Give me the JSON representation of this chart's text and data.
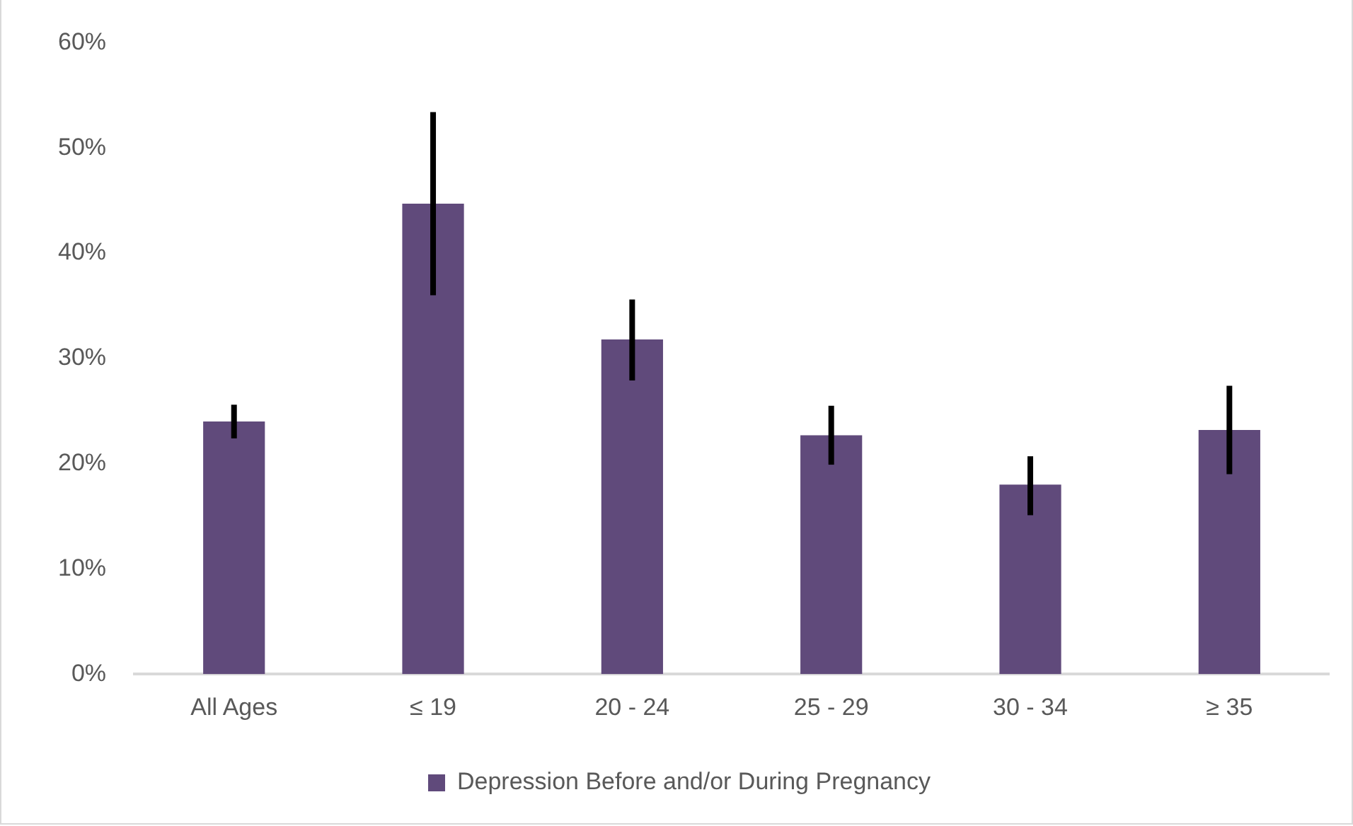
{
  "chart_data": {
    "type": "bar",
    "categories": [
      "All Ages",
      "≤ 19",
      "20 - 24",
      "25 - 29",
      "30 - 34",
      "≥ 35"
    ],
    "series": [
      {
        "name": "Depression Before and/or During Pregnancy",
        "color": "#604a7b",
        "values": [
          24.0,
          44.7,
          31.8,
          22.7,
          18.0,
          23.2
        ],
        "errors": [
          [
            22.4,
            25.6
          ],
          [
            36.0,
            53.4
          ],
          [
            27.9,
            35.6
          ],
          [
            19.9,
            25.5
          ],
          [
            15.1,
            20.7
          ],
          [
            19.0,
            27.4
          ]
        ]
      }
    ],
    "ylim": [
      0,
      60
    ],
    "yticks": [
      {
        "value": 0,
        "label": "0%"
      },
      {
        "value": 10,
        "label": "10%"
      },
      {
        "value": 20,
        "label": "20%"
      },
      {
        "value": 30,
        "label": "30%"
      },
      {
        "value": 40,
        "label": "40%"
      },
      {
        "value": 50,
        "label": "50%"
      },
      {
        "value": 60,
        "label": "60%"
      }
    ],
    "grid": false,
    "legend": "bottom"
  }
}
